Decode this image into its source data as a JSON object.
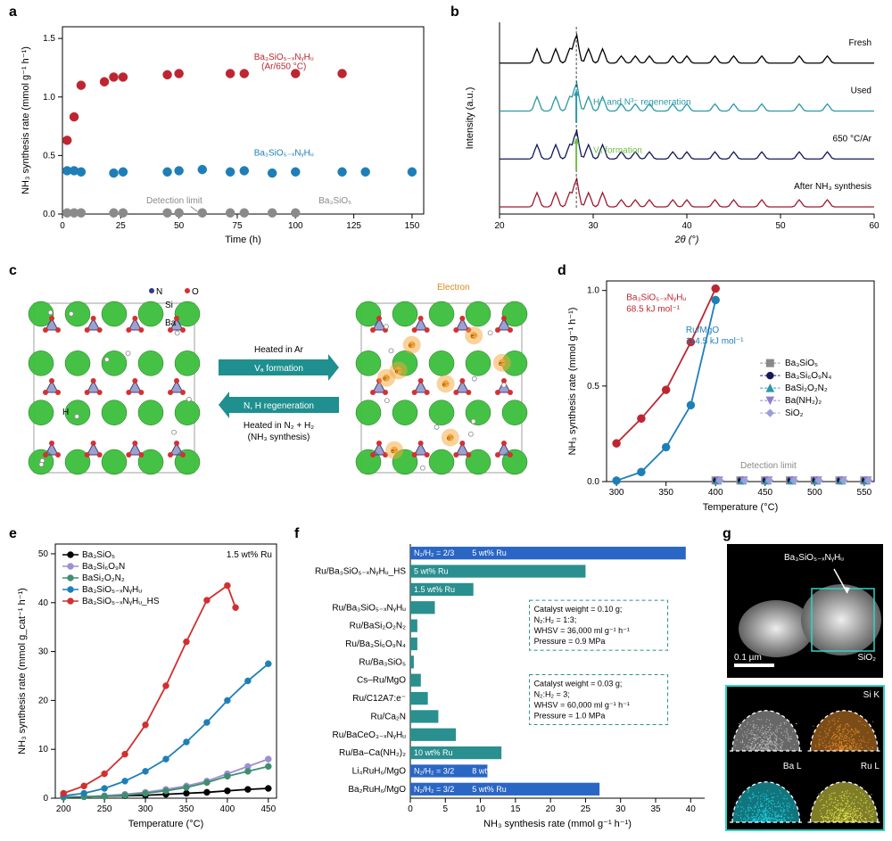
{
  "panel_a": {
    "label": "a",
    "type": "scatter",
    "xlabel": "Time (h)",
    "ylabel": "NH₃ synthesis rate (mmol g⁻¹ h⁻¹)",
    "xlim": [
      0,
      155
    ],
    "xticks": [
      0,
      25,
      50,
      75,
      100,
      125,
      150
    ],
    "ylim": [
      0,
      1.6
    ],
    "yticks": [
      0,
      0.5,
      1.0,
      1.5
    ],
    "series": [
      {
        "name": "Ba₃SiO₅₋ₓNᵧHᵤ (Ar/650 °C)",
        "color": "#bd2631",
        "marker": "circle",
        "x": [
          2,
          5,
          8,
          18,
          22,
          26,
          45,
          50,
          72,
          78,
          100,
          120
        ],
        "y": [
          0.63,
          0.83,
          1.1,
          1.13,
          1.17,
          1.17,
          1.19,
          1.2,
          1.2,
          1.2,
          1.2,
          1.2
        ]
      },
      {
        "name": "Ba₃SiO₅₋ₓNᵧHᵤ",
        "color": "#1e7fb8",
        "marker": "circle",
        "x": [
          2,
          5,
          8,
          22,
          26,
          45,
          50,
          60,
          72,
          78,
          90,
          100,
          120,
          130,
          150
        ],
        "y": [
          0.37,
          0.37,
          0.36,
          0.35,
          0.36,
          0.36,
          0.37,
          0.38,
          0.36,
          0.37,
          0.35,
          0.36,
          0.36,
          0.36,
          0.36
        ]
      },
      {
        "name": "Ba₃SiO₅",
        "color": "#8a8a8a",
        "marker": "circle",
        "x": [
          2,
          5,
          8,
          22,
          26,
          45,
          50,
          60,
          72,
          78,
          90,
          100
        ],
        "y": [
          0.01,
          0.01,
          0.01,
          0.01,
          0.01,
          0.01,
          0.01,
          0.01,
          0.01,
          0.01,
          0.01,
          0.01
        ]
      }
    ],
    "detection_label": "Detection limit",
    "detection_color": "#8a8a8a"
  },
  "panel_b": {
    "label": "b",
    "type": "xrd",
    "xlabel": "2θ (°)",
    "ylabel": "Intensity (a.u.)",
    "xlim": [
      20,
      60
    ],
    "xticks": [
      20,
      30,
      40,
      50,
      60
    ],
    "traces": [
      {
        "name": "After NH₃ synthesis",
        "color": "#9e1b32"
      },
      {
        "name": "650 °C/Ar",
        "color": "#15195a"
      },
      {
        "name": "Used",
        "color": "#2a99a6"
      },
      {
        "name": "Fresh",
        "color": "#000000"
      }
    ],
    "anno_regen": "H⁻ and N³⁻ regeneration",
    "anno_regen_color": "#2a99a6",
    "anno_va": "Vₐ formation",
    "anno_va_color": "#6fbf44"
  },
  "panel_c": {
    "label": "c",
    "heated_ar": "Heated in Ar",
    "va_formation": "Vₐ formation",
    "nh_regen": "N, H regeneration",
    "heated_n2h2_1": "Heated in N₂ + H₂",
    "heated_n2h2_2": "(NH₃ synthesis)",
    "atom_N": "N",
    "atom_O": "O",
    "atom_Si": "Si",
    "atom_Ba": "Ba",
    "atom_H": "H",
    "electron": "Electron",
    "arrow_fill": "#1f8f8f",
    "ba_color": "#3bbf3b",
    "o_color": "#d23232",
    "si_color": "#6a6fb0",
    "n_color": "#2d3b8f",
    "h_color": "#cccccc",
    "e_color": "#f5a63a"
  },
  "panel_d": {
    "label": "d",
    "type": "line",
    "xlabel": "Temperature (°C)",
    "ylabel": "NH₃ synthesis rate (mmol g⁻¹ h⁻¹)",
    "xlim": [
      290,
      560
    ],
    "xticks": [
      300,
      350,
      400,
      450,
      500,
      550
    ],
    "ylim": [
      0,
      1.05
    ],
    "yticks": [
      0,
      0.5,
      1.0
    ],
    "anno_red": "Ba₃SiO₅₋ₓNᵧHᵤ",
    "anno_red2": "68.5 kJ mol⁻¹",
    "anno_blue": "Ru/MgO",
    "anno_blue2": "114.5 kJ mol⁻¹",
    "detection_label": "Detection limit",
    "series_main": [
      {
        "name": "Ba₃SiO₅₋ₓNᵧHᵤ",
        "color": "#bd2631",
        "marker": "circle",
        "x": [
          300,
          325,
          350,
          375,
          400
        ],
        "y": [
          0.2,
          0.33,
          0.48,
          0.73,
          1.01
        ]
      },
      {
        "name": "Ru/MgO",
        "color": "#1e7fb8",
        "marker": "circle",
        "x": [
          300,
          325,
          350,
          375,
          400
        ],
        "y": [
          0.005,
          0.05,
          0.18,
          0.4,
          0.95
        ]
      }
    ],
    "series_flat": [
      {
        "name": "Ba₃SiO₅",
        "color": "#8a8a8a",
        "marker": "square"
      },
      {
        "name": "Ba₃Si₆O₉N₄",
        "color": "#15195a",
        "marker": "circle"
      },
      {
        "name": "BaSi₂O₂N₂",
        "color": "#2a99a6",
        "marker": "triangle"
      },
      {
        "name": "Ba(NH₂)₂",
        "color": "#8c7fcf",
        "marker": "tridown"
      },
      {
        "name": "SiO₂",
        "color": "#9f9fd6",
        "marker": "diamond"
      }
    ],
    "flat_x": [
      400,
      425,
      450,
      475,
      500,
      525,
      550
    ]
  },
  "panel_e": {
    "label": "e",
    "type": "line",
    "xlabel": "Temperature (°C)",
    "ylabel": "NH₃ synthesis rate (mmol g_cat⁻¹ h⁻¹)",
    "xlim": [
      190,
      460
    ],
    "xticks": [
      200,
      250,
      300,
      350,
      400,
      450
    ],
    "ylim": [
      0,
      52
    ],
    "yticks": [
      0,
      10,
      20,
      30,
      40,
      50
    ],
    "ru_label": "1.5 wt% Ru",
    "series": [
      {
        "name": "Ba₃SiO₅",
        "color": "#000000",
        "marker": "circle",
        "x": [
          200,
          225,
          250,
          275,
          300,
          325,
          350,
          375,
          400,
          425,
          450
        ],
        "y": [
          0.2,
          0.3,
          0.4,
          0.5,
          0.6,
          0.8,
          1.0,
          1.2,
          1.5,
          1.8,
          2.0
        ]
      },
      {
        "name": "Ba₃Si₆O₉N",
        "color": "#9e8ed6",
        "marker": "circle",
        "x": [
          200,
          225,
          250,
          275,
          300,
          325,
          350,
          375,
          400,
          425,
          450
        ],
        "y": [
          0.2,
          0.3,
          0.5,
          0.8,
          1.2,
          1.8,
          2.5,
          3.5,
          5.0,
          6.5,
          8.0
        ]
      },
      {
        "name": "BaSi₂O₂N₂",
        "color": "#3f8f6f",
        "marker": "circle",
        "x": [
          200,
          225,
          250,
          275,
          300,
          325,
          350,
          375,
          400,
          425,
          450
        ],
        "y": [
          0.2,
          0.3,
          0.4,
          0.6,
          1.0,
          1.5,
          2.2,
          3.2,
          4.5,
          5.5,
          6.5
        ]
      },
      {
        "name": "Ba₃SiO₅₋ₓNᵧHᵤ",
        "color": "#1e7fb8",
        "marker": "circle",
        "x": [
          200,
          225,
          250,
          275,
          300,
          325,
          350,
          375,
          400,
          425,
          450
        ],
        "y": [
          0.5,
          1.0,
          2.0,
          3.5,
          5.5,
          8.0,
          11.5,
          15.5,
          20.0,
          24.0,
          27.5
        ]
      },
      {
        "name": "Ba₃SiO₅₋ₓNᵧHᵤ_HS",
        "color": "#d22f2f",
        "marker": "circle",
        "x": [
          200,
          225,
          250,
          275,
          300,
          325,
          350,
          375,
          400,
          410
        ],
        "y": [
          1.0,
          2.5,
          5.0,
          9.0,
          15.0,
          23.0,
          32.0,
          40.5,
          43.5,
          39.0
        ]
      }
    ]
  },
  "panel_f": {
    "label": "f",
    "type": "hbar",
    "xlabel": "NH₃ synthesis rate (mmol g⁻¹ h⁻¹)",
    "xlim": [
      0,
      42
    ],
    "xticks": [
      0,
      5,
      10,
      15,
      20,
      25,
      30,
      35,
      40
    ],
    "color_teal": "#2a8f8f",
    "color_blue": "#2a66c4",
    "bars": [
      {
        "label": "",
        "value": 39.3,
        "color": "#2a66c4",
        "badge": "N₂/H₂ = 2/3",
        "badge2": "5 wt% Ru"
      },
      {
        "label": "Ru/Ba₃SiO₅₋ₓNᵧHᵤ_HS",
        "value": 25.0,
        "color": "#2a8f8f",
        "badge": "5 wt% Ru"
      },
      {
        "label": "",
        "value": 9.0,
        "color": "#2a8f8f",
        "badge": "1.5 wt% Ru"
      },
      {
        "label": "Ru/Ba₃SiO₅₋ₓNᵧHᵤ",
        "value": 3.5,
        "color": "#2a8f8f"
      },
      {
        "label": "Ru/BaSi₂O₂N₂",
        "value": 1.0,
        "color": "#2a8f8f"
      },
      {
        "label": "Ru/Ba₃Si₆O₉N₄",
        "value": 1.0,
        "color": "#2a8f8f"
      },
      {
        "label": "Ru/Ba₃SiO₅",
        "value": 0.5,
        "color": "#2a8f8f"
      },
      {
        "label": "Cs–Ru/MgO",
        "value": 1.5,
        "color": "#2a8f8f"
      },
      {
        "label": "Ru/C12A7:e⁻",
        "value": 2.5,
        "color": "#2a8f8f"
      },
      {
        "label": "Ru/Ca₂N",
        "value": 4.0,
        "color": "#2a8f8f"
      },
      {
        "label": "Ru/BaCeO₃₋ₓNᵧHᵤ",
        "value": 6.5,
        "color": "#2a8f8f"
      },
      {
        "label": "Ru/Ba–Ca(NH₂)₂",
        "value": 13.0,
        "color": "#2a8f8f",
        "badge": "10 wt% Ru"
      },
      {
        "label": "Li₄RuH₆/MgO",
        "value": 11.0,
        "color": "#2a66c4",
        "badge": "N₂/H₂ = 3/2",
        "badge2": "8 wt% Ru"
      },
      {
        "label": "Ba₂RuH₆/MgO",
        "value": 27.0,
        "color": "#2a66c4",
        "badge": "N₂/H₂ = 3/2",
        "badge2": "5 wt% Ru"
      }
    ],
    "info1_lines": [
      "Catalyst weight = 0.10 g;",
      "N₂:H₂ = 1:3;",
      "WHSV = 36,000 ml g⁻¹ h⁻¹",
      "Pressure = 0.9 MPa"
    ],
    "info2_lines": [
      "Catalyst weight = 0.03 g;",
      "N₂:H₂ = 3;",
      "WHSV = 60,000 ml g⁻¹ h⁻¹",
      "Pressure = 1.0 MPa"
    ]
  },
  "panel_g": {
    "label": "g",
    "top_label": "Ba₃SiO₅₋ₓNᵧHᵤ",
    "sio2": "SiO₂",
    "scale": "0.1 µm",
    "maps": [
      {
        "name": "Si K",
        "color": "#e08a2a"
      },
      {
        "name": "Ba L",
        "color": "#21d6e6"
      },
      {
        "name": "Ru L",
        "color": "#e5e54a"
      }
    ]
  }
}
